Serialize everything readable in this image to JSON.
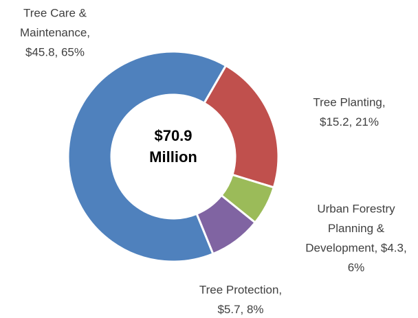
{
  "chart_data": {
    "type": "donut",
    "categories": [
      "Tree Planting",
      "Urban Forestry Planning & Development",
      "Tree Protection",
      "Tree Care & Maintenance"
    ],
    "values": [
      15.2,
      4.3,
      5.7,
      45.8
    ],
    "colors": [
      "#c0504d",
      "#9bbb59",
      "#8064a2",
      "#4f81bd"
    ],
    "labels": [
      [
        "Tree Planting,",
        "$15.2, 21%"
      ],
      [
        "Urban Forestry",
        "Planning &",
        "Development, $4.3,",
        "6%"
      ],
      [
        "Tree Protection,",
        "$5.7, 8%"
      ],
      [
        "Tree Care &",
        "Maintenance,",
        "$45.8, 65%"
      ]
    ],
    "center_label": [
      "$70.9",
      "Million"
    ]
  }
}
